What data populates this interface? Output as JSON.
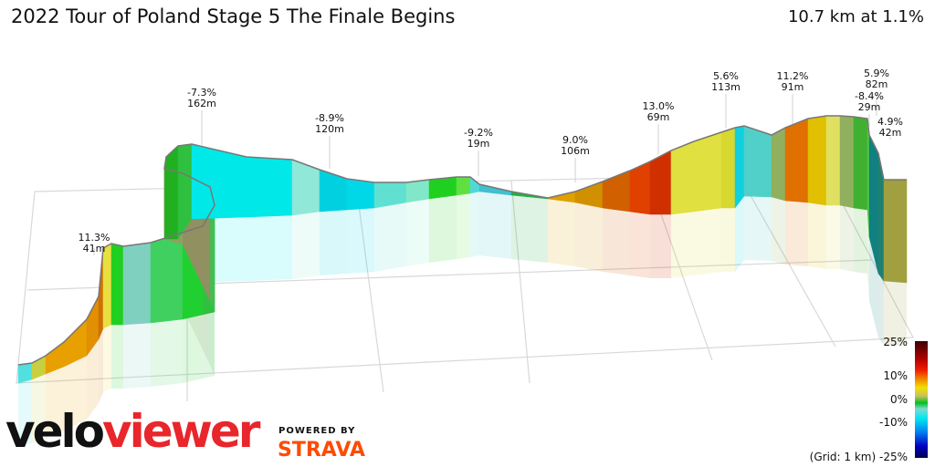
{
  "header": {
    "title": "2022 Tour of Poland Stage 5 The Finale Begins",
    "summary": "10.7 km at 1.1%"
  },
  "chart_data": {
    "type": "3d-elevation-profile",
    "distance_km": 10.7,
    "average_gradient_pct": 1.1,
    "grid": "1 km",
    "annotations": [
      {
        "gradient": "11.3%",
        "length": "41m"
      },
      {
        "gradient": "-7.3%",
        "length": "162m"
      },
      {
        "gradient": "-8.9%",
        "length": "120m"
      },
      {
        "gradient": "-9.2%",
        "length": "19m"
      },
      {
        "gradient": "9.0%",
        "length": "106m"
      },
      {
        "gradient": "13.0%",
        "length": "69m"
      },
      {
        "gradient": "5.6%",
        "length": "113m"
      },
      {
        "gradient": "11.2%",
        "length": "91m"
      },
      {
        "gradient": "5.9%",
        "length": "82m"
      },
      {
        "gradient": "-8.4%",
        "length": "29m"
      },
      {
        "gradient": "4.9%",
        "length": "42m"
      }
    ],
    "color_scale": {
      "ticks": [
        "25%",
        "10%",
        "0%",
        "-10%",
        "-25%"
      ],
      "grid_label": "(Grid: 1 km)",
      "colors": [
        "#3a0000",
        "#f02000",
        "#f0e000",
        "#00c020",
        "#00e8f0",
        "#0000c0",
        "#000050"
      ]
    }
  },
  "branding": {
    "logo_a": "velo",
    "logo_b": "viewer",
    "powered_by": "POWERED BY",
    "strava": "STRAVA",
    "logo_color": "#e8262b",
    "strava_color": "#fc4c02"
  }
}
